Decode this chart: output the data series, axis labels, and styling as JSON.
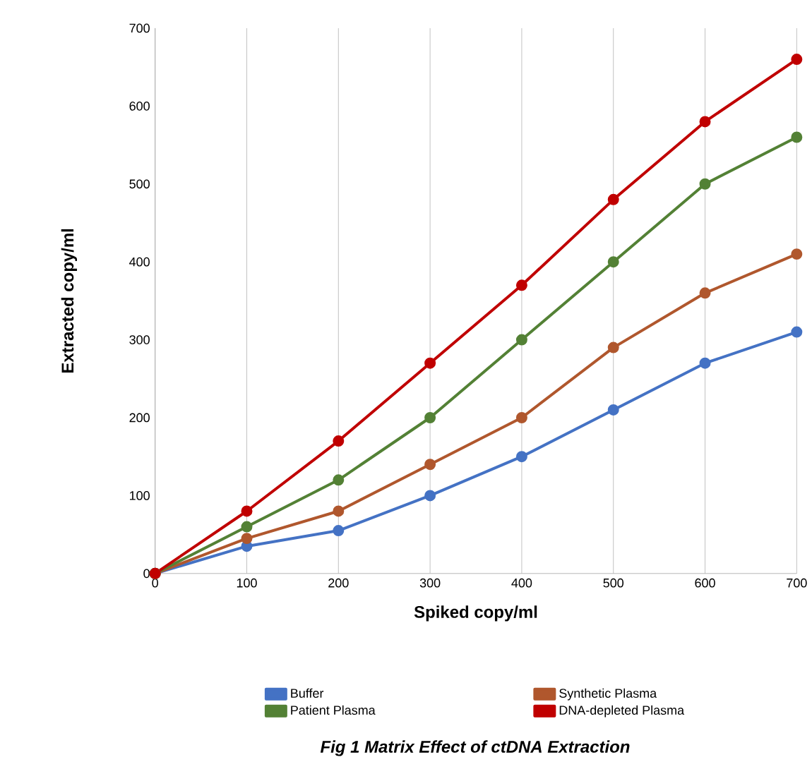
{
  "chart_data": {
    "type": "line",
    "xlabel": "Spiked copy/ml",
    "ylabel": "Extracted copy/ml",
    "x": [
      0,
      100,
      200,
      300,
      400,
      500,
      600,
      700
    ],
    "xlim": [
      0,
      700
    ],
    "xticks": [
      0,
      100,
      200,
      300,
      400,
      500,
      600,
      700
    ],
    "ylim": [
      0,
      700
    ],
    "yticks": [
      0,
      100,
      200,
      300,
      400,
      500,
      600,
      700
    ],
    "grid": "x",
    "legend": "bottom",
    "marker": "circle",
    "series": [
      {
        "name": "Buffer",
        "color": "#4472c4",
        "values": [
          0,
          35,
          55,
          100,
          150,
          210,
          270,
          310
        ]
      },
      {
        "name": "Synthetic Plasma",
        "color": "#b0572d",
        "values": [
          0,
          45,
          80,
          140,
          200,
          290,
          360,
          410
        ]
      },
      {
        "name": "Patient Plasma",
        "color": "#538135",
        "values": [
          0,
          60,
          120,
          200,
          300,
          400,
          500,
          560
        ]
      },
      {
        "name": "DNA-depleted Plasma",
        "color": "#c00000",
        "values": [
          0,
          80,
          170,
          270,
          370,
          480,
          580,
          660
        ]
      }
    ],
    "annotations": [
      "Fig 1 Matrix Effect of ctDNA Extraction"
    ]
  }
}
